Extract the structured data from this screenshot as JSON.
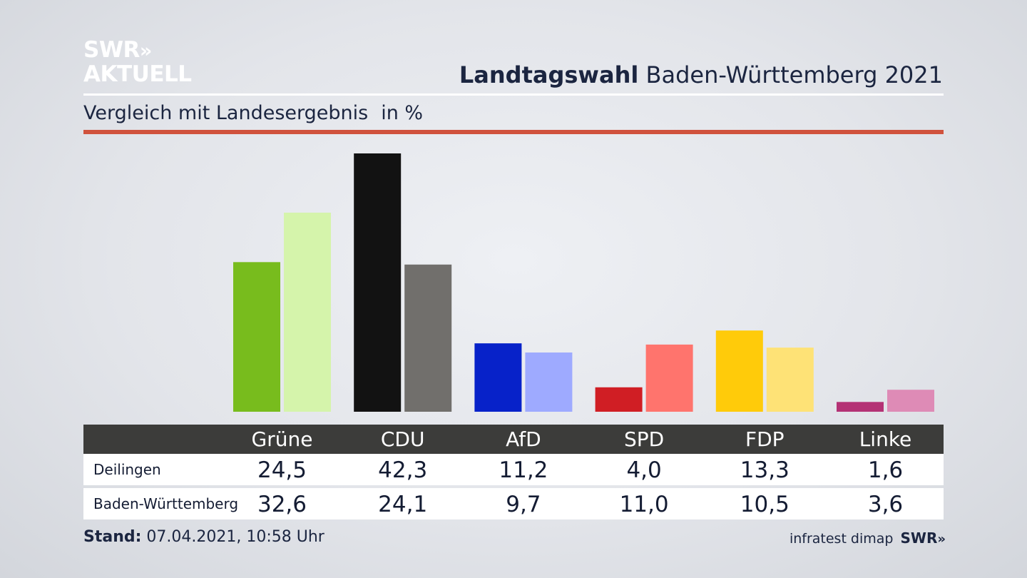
{
  "branding": {
    "logo_line1": "SWR",
    "logo_chevrons": "»",
    "logo_line2": "AKTUELL",
    "source_text": "infratest dimap",
    "source_logo": "SWR",
    "source_chevrons": "»"
  },
  "header": {
    "title_bold": "Landtagswahl",
    "title_rest": " Baden-Württemberg 2021",
    "subtitle": "Vergleich mit Landesergebnis",
    "unit": "in %"
  },
  "footer": {
    "stand_label": "Stand:",
    "stand_value": " 07.04.2021, 10:58 Uhr"
  },
  "chart_data": {
    "type": "bar",
    "categories": [
      "Grüne",
      "CDU",
      "AfD",
      "SPD",
      "FDP",
      "Linke"
    ],
    "series": [
      {
        "name": "Deilingen",
        "values": [
          24.5,
          42.3,
          11.2,
          4.0,
          13.3,
          1.6
        ],
        "labels": [
          "24,5",
          "42,3",
          "11,2",
          "4,0",
          "13,3",
          "1,6"
        ],
        "colors": [
          "#78bc1d",
          "#121212",
          "#0722c9",
          "#d01e24",
          "#ffcb0a",
          "#b43275"
        ]
      },
      {
        "name": "Baden-Württemberg",
        "values": [
          32.6,
          24.1,
          9.7,
          11.0,
          10.5,
          3.6
        ],
        "labels": [
          "32,6",
          "24,1",
          "9,7",
          "11,0",
          "10,5",
          "3,6"
        ],
        "colors": [
          "#d5f4ab",
          "#716f6c",
          "#9eaaff",
          "#ff746d",
          "#fee276",
          "#de8bb6"
        ]
      }
    ],
    "ylim": [
      0,
      42.3
    ],
    "grid": false,
    "legend": "table-below"
  },
  "colors": {
    "accent_red": "#d0523d",
    "table_header": "#3c3c3a"
  }
}
